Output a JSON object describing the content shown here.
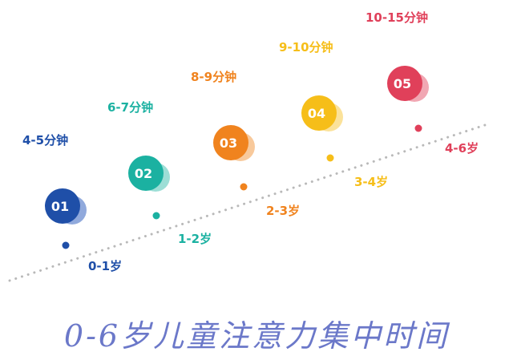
{
  "title": "0-6岁儿童注意力集中时间",
  "stages": [
    {
      "num": "01",
      "duration": "4-5分钟",
      "age": "0-1岁",
      "color": "#1f4fa8",
      "light": "#7d9ad6"
    },
    {
      "num": "02",
      "duration": "6-7分钟",
      "age": "1-2岁",
      "color": "#1bb1a1",
      "light": "#8bd8cf"
    },
    {
      "num": "03",
      "duration": "8-9分钟",
      "age": "2-3岁",
      "color": "#f0831e",
      "light": "#f7bf8a"
    },
    {
      "num": "04",
      "duration": "9-10分钟",
      "age": "3-4岁",
      "color": "#f6be19",
      "light": "#fadd88"
    },
    {
      "num": "05",
      "duration": "10-15分钟",
      "age": "4-6岁",
      "color": "#e0405a",
      "light": "#ee98a6"
    }
  ],
  "icons": {
    "connector": "dotted-trend-line"
  }
}
